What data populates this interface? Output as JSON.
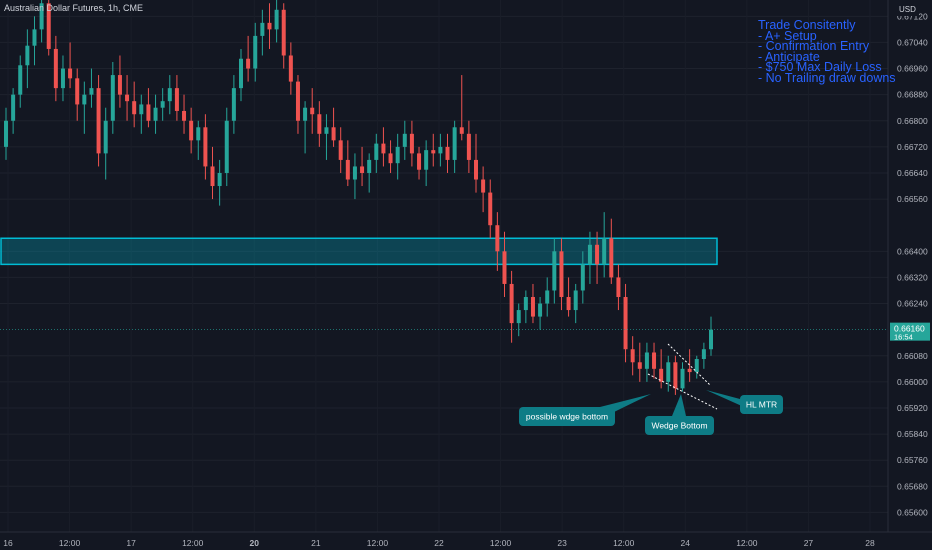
{
  "header": {
    "title": "Australian Dollar Futures, 1h, CME"
  },
  "notes": [
    "Trade Consitently",
    "- A+ Setup",
    "- Confirmation Entry",
    "- Anticipate",
    "- $750 Max Daily Loss",
    "- No Trailing draw downs"
  ],
  "colors": {
    "up": "#26a69a",
    "down": "#ef5350",
    "zone": "#00bcd4",
    "note": "#2962ff",
    "background": "#131722"
  },
  "chart_data": {
    "type": "candlestick",
    "currency": "USD",
    "y_ticks": [
      "0.67120",
      "0.67040",
      "0.66960",
      "0.66880",
      "0.66800",
      "0.66720",
      "0.66640",
      "0.66560",
      "0.66400",
      "0.66320",
      "0.66240",
      "0.66080",
      "0.66000",
      "0.65920",
      "0.65840",
      "0.65760",
      "0.65680",
      "0.65600"
    ],
    "x_ticks": [
      "16",
      "12:00",
      "17",
      "12:00",
      "20",
      "21",
      "12:00",
      "22",
      "12:00",
      "23",
      "12:00",
      "24",
      "12:00",
      "27",
      "28"
    ],
    "ylim": [
      0.6554,
      0.6717
    ],
    "last_price": {
      "value": "0.66160",
      "countdown": "16:54"
    },
    "zone": {
      "low": 0.6636,
      "high": 0.6644
    },
    "annotations": [
      "possible wdge bottom",
      "Wedge Bottom",
      "HL MTR"
    ],
    "candles": [
      [
        0.6672,
        0.6684,
        0.6668,
        0.668
      ],
      [
        0.668,
        0.669,
        0.6676,
        0.6688
      ],
      [
        0.6688,
        0.67,
        0.6684,
        0.6697
      ],
      [
        0.6697,
        0.6708,
        0.669,
        0.6703
      ],
      [
        0.6703,
        0.6712,
        0.6697,
        0.6708
      ],
      [
        0.6708,
        0.672,
        0.6704,
        0.6716
      ],
      [
        0.6716,
        0.6718,
        0.67,
        0.6702
      ],
      [
        0.6702,
        0.6706,
        0.6686,
        0.669
      ],
      [
        0.669,
        0.67,
        0.6686,
        0.6696
      ],
      [
        0.6696,
        0.6704,
        0.669,
        0.6693
      ],
      [
        0.6693,
        0.6696,
        0.668,
        0.6685
      ],
      [
        0.6685,
        0.6692,
        0.6676,
        0.6688
      ],
      [
        0.6688,
        0.6696,
        0.6684,
        0.669
      ],
      [
        0.669,
        0.6694,
        0.6666,
        0.667
      ],
      [
        0.667,
        0.6684,
        0.6662,
        0.668
      ],
      [
        0.668,
        0.6698,
        0.6676,
        0.6694
      ],
      [
        0.6694,
        0.67,
        0.6684,
        0.6688
      ],
      [
        0.6688,
        0.6694,
        0.668,
        0.6686
      ],
      [
        0.6686,
        0.6692,
        0.6678,
        0.6682
      ],
      [
        0.6682,
        0.6688,
        0.6676,
        0.6685
      ],
      [
        0.6685,
        0.669,
        0.6678,
        0.668
      ],
      [
        0.668,
        0.6688,
        0.6676,
        0.6684
      ],
      [
        0.6684,
        0.669,
        0.668,
        0.6686
      ],
      [
        0.6686,
        0.6694,
        0.6682,
        0.669
      ],
      [
        0.669,
        0.6694,
        0.668,
        0.6683
      ],
      [
        0.6683,
        0.6688,
        0.6676,
        0.668
      ],
      [
        0.668,
        0.6684,
        0.667,
        0.6674
      ],
      [
        0.6674,
        0.668,
        0.6668,
        0.6678
      ],
      [
        0.6678,
        0.6682,
        0.6662,
        0.6666
      ],
      [
        0.6666,
        0.6672,
        0.6656,
        0.666
      ],
      [
        0.666,
        0.6668,
        0.6654,
        0.6664
      ],
      [
        0.6664,
        0.6684,
        0.666,
        0.668
      ],
      [
        0.668,
        0.6694,
        0.6676,
        0.669
      ],
      [
        0.669,
        0.6702,
        0.6686,
        0.6699
      ],
      [
        0.6699,
        0.6706,
        0.6692,
        0.6696
      ],
      [
        0.6696,
        0.671,
        0.6692,
        0.6706
      ],
      [
        0.6706,
        0.6714,
        0.67,
        0.671
      ],
      [
        0.671,
        0.6716,
        0.6702,
        0.6708
      ],
      [
        0.6708,
        0.6718,
        0.6704,
        0.6714
      ],
      [
        0.6714,
        0.6716,
        0.6696,
        0.67
      ],
      [
        0.67,
        0.6704,
        0.6688,
        0.6692
      ],
      [
        0.6692,
        0.6694,
        0.6676,
        0.668
      ],
      [
        0.668,
        0.6686,
        0.667,
        0.6684
      ],
      [
        0.6684,
        0.669,
        0.6676,
        0.6682
      ],
      [
        0.6682,
        0.6686,
        0.6672,
        0.6676
      ],
      [
        0.6676,
        0.6682,
        0.6668,
        0.6678
      ],
      [
        0.6678,
        0.6684,
        0.6672,
        0.6674
      ],
      [
        0.6674,
        0.6678,
        0.6664,
        0.6668
      ],
      [
        0.6668,
        0.6674,
        0.666,
        0.6662
      ],
      [
        0.6662,
        0.667,
        0.6656,
        0.6666
      ],
      [
        0.6666,
        0.6672,
        0.666,
        0.6664
      ],
      [
        0.6664,
        0.667,
        0.6658,
        0.6668
      ],
      [
        0.6668,
        0.6676,
        0.6664,
        0.6673
      ],
      [
        0.6673,
        0.6678,
        0.6666,
        0.667
      ],
      [
        0.667,
        0.6674,
        0.6664,
        0.6667
      ],
      [
        0.6667,
        0.6676,
        0.6662,
        0.6672
      ],
      [
        0.6672,
        0.668,
        0.6668,
        0.6676
      ],
      [
        0.6676,
        0.668,
        0.6666,
        0.667
      ],
      [
        0.667,
        0.6672,
        0.6662,
        0.6665
      ],
      [
        0.6665,
        0.6674,
        0.666,
        0.6671
      ],
      [
        0.6671,
        0.6676,
        0.6666,
        0.667
      ],
      [
        0.667,
        0.6676,
        0.6666,
        0.6672
      ],
      [
        0.6672,
        0.6676,
        0.6664,
        0.6668
      ],
      [
        0.6668,
        0.668,
        0.6664,
        0.6678
      ],
      [
        0.6678,
        0.6694,
        0.6674,
        0.6676
      ],
      [
        0.6676,
        0.668,
        0.6664,
        0.6668
      ],
      [
        0.6668,
        0.6676,
        0.6658,
        0.6662
      ],
      [
        0.6662,
        0.6666,
        0.6652,
        0.6658
      ],
      [
        0.6658,
        0.6662,
        0.6644,
        0.6648
      ],
      [
        0.6648,
        0.6652,
        0.6634,
        0.664
      ],
      [
        0.664,
        0.6646,
        0.6626,
        0.663
      ],
      [
        0.663,
        0.6634,
        0.6612,
        0.6618
      ],
      [
        0.6618,
        0.6624,
        0.6614,
        0.6622
      ],
      [
        0.6622,
        0.6628,
        0.6618,
        0.6626
      ],
      [
        0.6626,
        0.663,
        0.6618,
        0.662
      ],
      [
        0.662,
        0.6626,
        0.6616,
        0.6624
      ],
      [
        0.6624,
        0.6632,
        0.662,
        0.6628
      ],
      [
        0.6628,
        0.6644,
        0.6624,
        0.664
      ],
      [
        0.664,
        0.6644,
        0.6622,
        0.6626
      ],
      [
        0.6626,
        0.6632,
        0.662,
        0.6622
      ],
      [
        0.6622,
        0.663,
        0.6618,
        0.6628
      ],
      [
        0.6628,
        0.664,
        0.6624,
        0.6636
      ],
      [
        0.6636,
        0.6646,
        0.663,
        0.6642
      ],
      [
        0.6642,
        0.6646,
        0.663,
        0.6636
      ],
      [
        0.6636,
        0.6652,
        0.6632,
        0.6644
      ],
      [
        0.6644,
        0.665,
        0.663,
        0.6632
      ],
      [
        0.6632,
        0.6636,
        0.6622,
        0.6626
      ],
      [
        0.6626,
        0.663,
        0.6606,
        0.661
      ],
      [
        0.661,
        0.6614,
        0.6602,
        0.6606
      ],
      [
        0.6606,
        0.6612,
        0.66,
        0.6604
      ],
      [
        0.6604,
        0.6612,
        0.66,
        0.6609
      ],
      [
        0.6609,
        0.6612,
        0.6601,
        0.6604
      ],
      [
        0.6604,
        0.661,
        0.6598,
        0.66
      ],
      [
        0.66,
        0.6608,
        0.6597,
        0.6606
      ],
      [
        0.6606,
        0.6608,
        0.6596,
        0.6598
      ],
      [
        0.6598,
        0.6606,
        0.6597,
        0.6604
      ],
      [
        0.6604,
        0.661,
        0.66,
        0.6603
      ],
      [
        0.6603,
        0.6608,
        0.6601,
        0.6607
      ],
      [
        0.6607,
        0.6612,
        0.6604,
        0.661
      ],
      [
        0.661,
        0.662,
        0.6608,
        0.6616
      ]
    ]
  }
}
